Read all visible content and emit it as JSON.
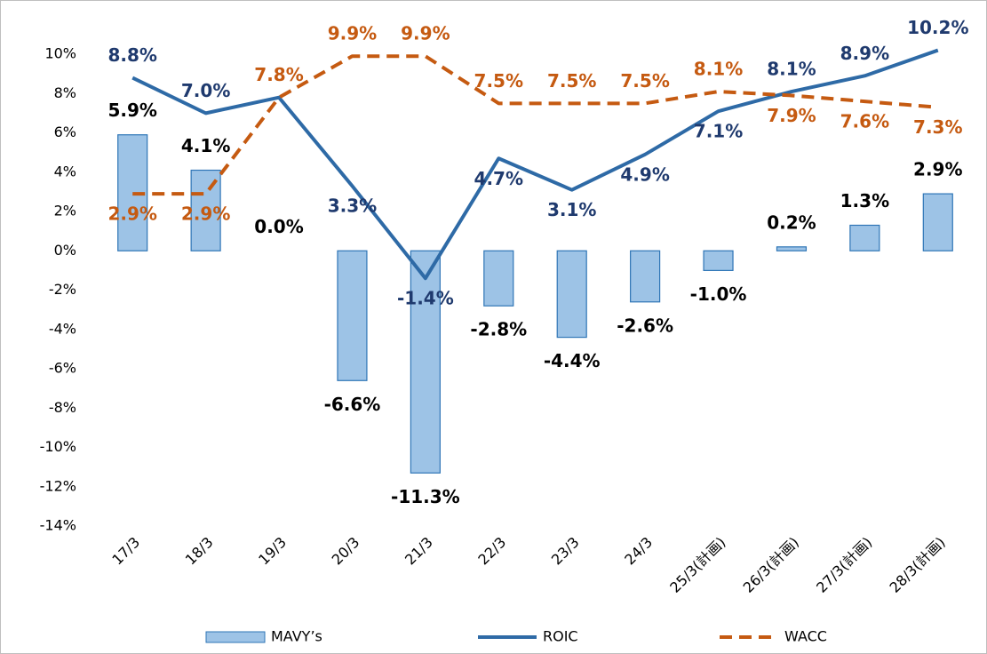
{
  "chart_data": {
    "type": "combo",
    "categories": [
      "17/3",
      "18/3",
      "19/3",
      "20/3",
      "21/3",
      "22/3",
      "23/3",
      "24/3",
      "25/3(計画)",
      "26/3(計画)",
      "27/3(計画)",
      "28/3(計画)"
    ],
    "series": [
      {
        "name": "MAVY’s",
        "type": "bar",
        "color": "#9dc3e6",
        "edge": "#2e75b6",
        "label_color": "#000000",
        "values": [
          5.9,
          4.1,
          0.0,
          -6.6,
          -11.3,
          -2.8,
          -4.4,
          -2.6,
          -1.0,
          0.2,
          1.3,
          2.9
        ],
        "value_labels": [
          "5.9%",
          "4.1%",
          "0.0%",
          "-6.6%",
          "-11.3%",
          "-2.8%",
          "-4.4%",
          "-2.6%",
          "-1.0%",
          "0.2%",
          "1.3%",
          "2.9%"
        ]
      },
      {
        "name": "ROIC",
        "type": "line",
        "color": "#2e6aa6",
        "label_color": "#1f3a6e",
        "values": [
          8.8,
          7.0,
          7.8,
          3.3,
          -1.4,
          4.7,
          3.1,
          4.9,
          7.1,
          8.1,
          8.9,
          10.2
        ],
        "value_labels": [
          "8.8%",
          "7.0%",
          null,
          "3.3%",
          "-1.4%",
          "4.7%",
          "3.1%",
          "4.9%",
          "7.1%",
          "8.1%",
          "8.9%",
          "10.2%"
        ]
      },
      {
        "name": "WACC",
        "type": "line",
        "dashed": true,
        "color": "#c55a11",
        "label_color": "#c55a11",
        "values": [
          2.9,
          2.9,
          7.8,
          9.9,
          9.9,
          7.5,
          7.5,
          7.5,
          8.1,
          7.9,
          7.6,
          7.3
        ],
        "value_labels": [
          "2.9%",
          "2.9%",
          "7.8%",
          "9.9%",
          "9.9%",
          "7.5%",
          "7.5%",
          "7.5%",
          "8.1%",
          "7.9%",
          "7.6%",
          "7.3%"
        ]
      }
    ],
    "ylim": [
      -14,
      10
    ],
    "yticks": [
      {
        "value": -14,
        "label": "-14%"
      },
      {
        "value": -12,
        "label": "-12%"
      },
      {
        "value": -10,
        "label": "-10%"
      },
      {
        "value": -8,
        "label": "-8%"
      },
      {
        "value": -6,
        "label": "-6%"
      },
      {
        "value": -4,
        "label": "-4%"
      },
      {
        "value": -2,
        "label": "-2%"
      },
      {
        "value": 0,
        "label": "0%"
      },
      {
        "value": 2,
        "label": "2%"
      },
      {
        "value": 4,
        "label": "4%"
      },
      {
        "value": 6,
        "label": "6%"
      },
      {
        "value": 8,
        "label": "8%"
      },
      {
        "value": 10,
        "label": "10%"
      }
    ],
    "grid": false,
    "legend": "bottom"
  }
}
